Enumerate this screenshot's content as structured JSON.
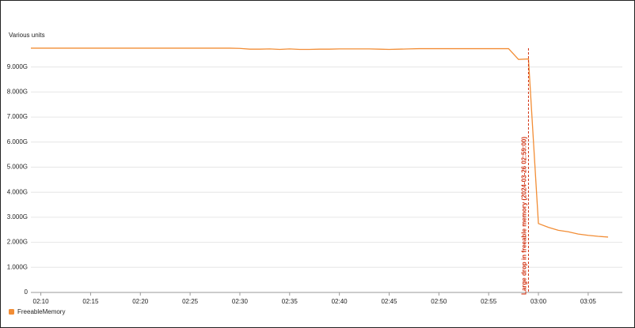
{
  "chart_data": {
    "type": "line",
    "y_label": "Various units",
    "x": [
      "02:09",
      "02:10",
      "02:11",
      "02:12",
      "02:13",
      "02:14",
      "02:15",
      "02:16",
      "02:17",
      "02:18",
      "02:19",
      "02:20",
      "02:21",
      "02:22",
      "02:23",
      "02:24",
      "02:25",
      "02:26",
      "02:27",
      "02:28",
      "02:29",
      "02:30",
      "02:31",
      "02:32",
      "02:33",
      "02:34",
      "02:35",
      "02:36",
      "02:37",
      "02:38",
      "02:39",
      "02:40",
      "02:41",
      "02:42",
      "02:43",
      "02:44",
      "02:45",
      "02:46",
      "02:47",
      "02:48",
      "02:49",
      "02:50",
      "02:51",
      "02:52",
      "02:53",
      "02:54",
      "02:55",
      "02:56",
      "02:57",
      "02:58",
      "02:59",
      "03:00",
      "03:01",
      "03:02",
      "03:03",
      "03:04",
      "03:05",
      "03:06",
      "03:07"
    ],
    "series": [
      {
        "name": "FreeableMemory",
        "color": "#f28d35",
        "values": [
          9.75,
          9.75,
          9.75,
          9.75,
          9.75,
          9.75,
          9.75,
          9.75,
          9.75,
          9.75,
          9.75,
          9.75,
          9.75,
          9.75,
          9.75,
          9.75,
          9.75,
          9.75,
          9.75,
          9.75,
          9.75,
          9.74,
          9.71,
          9.71,
          9.72,
          9.7,
          9.72,
          9.7,
          9.7,
          9.71,
          9.71,
          9.72,
          9.72,
          9.72,
          9.72,
          9.71,
          9.7,
          9.71,
          9.72,
          9.73,
          9.73,
          9.73,
          9.73,
          9.73,
          9.73,
          9.73,
          9.73,
          9.73,
          9.73,
          9.3,
          9.32,
          2.75,
          2.6,
          2.48,
          2.42,
          2.33,
          2.28,
          2.24,
          2.21
        ]
      }
    ],
    "xlim": [
      "02:09",
      "03:07"
    ],
    "xticks": [
      "02:10",
      "02:15",
      "02:20",
      "02:25",
      "02:30",
      "02:35",
      "02:40",
      "02:45",
      "02:50",
      "02:55",
      "03:00",
      "03:05"
    ],
    "ylim": [
      0,
      10
    ],
    "yticks": [
      0,
      {
        "value": 1,
        "label": "1.000G"
      },
      {
        "value": 2,
        "label": "2.000G"
      },
      {
        "value": 3,
        "label": "3.000G"
      },
      {
        "value": 4,
        "label": "4.000G"
      },
      {
        "value": 5,
        "label": "5.000G"
      },
      {
        "value": 6,
        "label": "6.000G"
      },
      {
        "value": 7,
        "label": "7.000G"
      },
      {
        "value": 8,
        "label": "8.000G"
      },
      {
        "value": 9,
        "label": "9.000G"
      }
    ],
    "grid": true,
    "legend": "bottom-left",
    "annotation": {
      "x": "02:59",
      "label": "Large drop in freeable memory (2024-03-26 02:59:00)",
      "color": "#d13212"
    }
  }
}
